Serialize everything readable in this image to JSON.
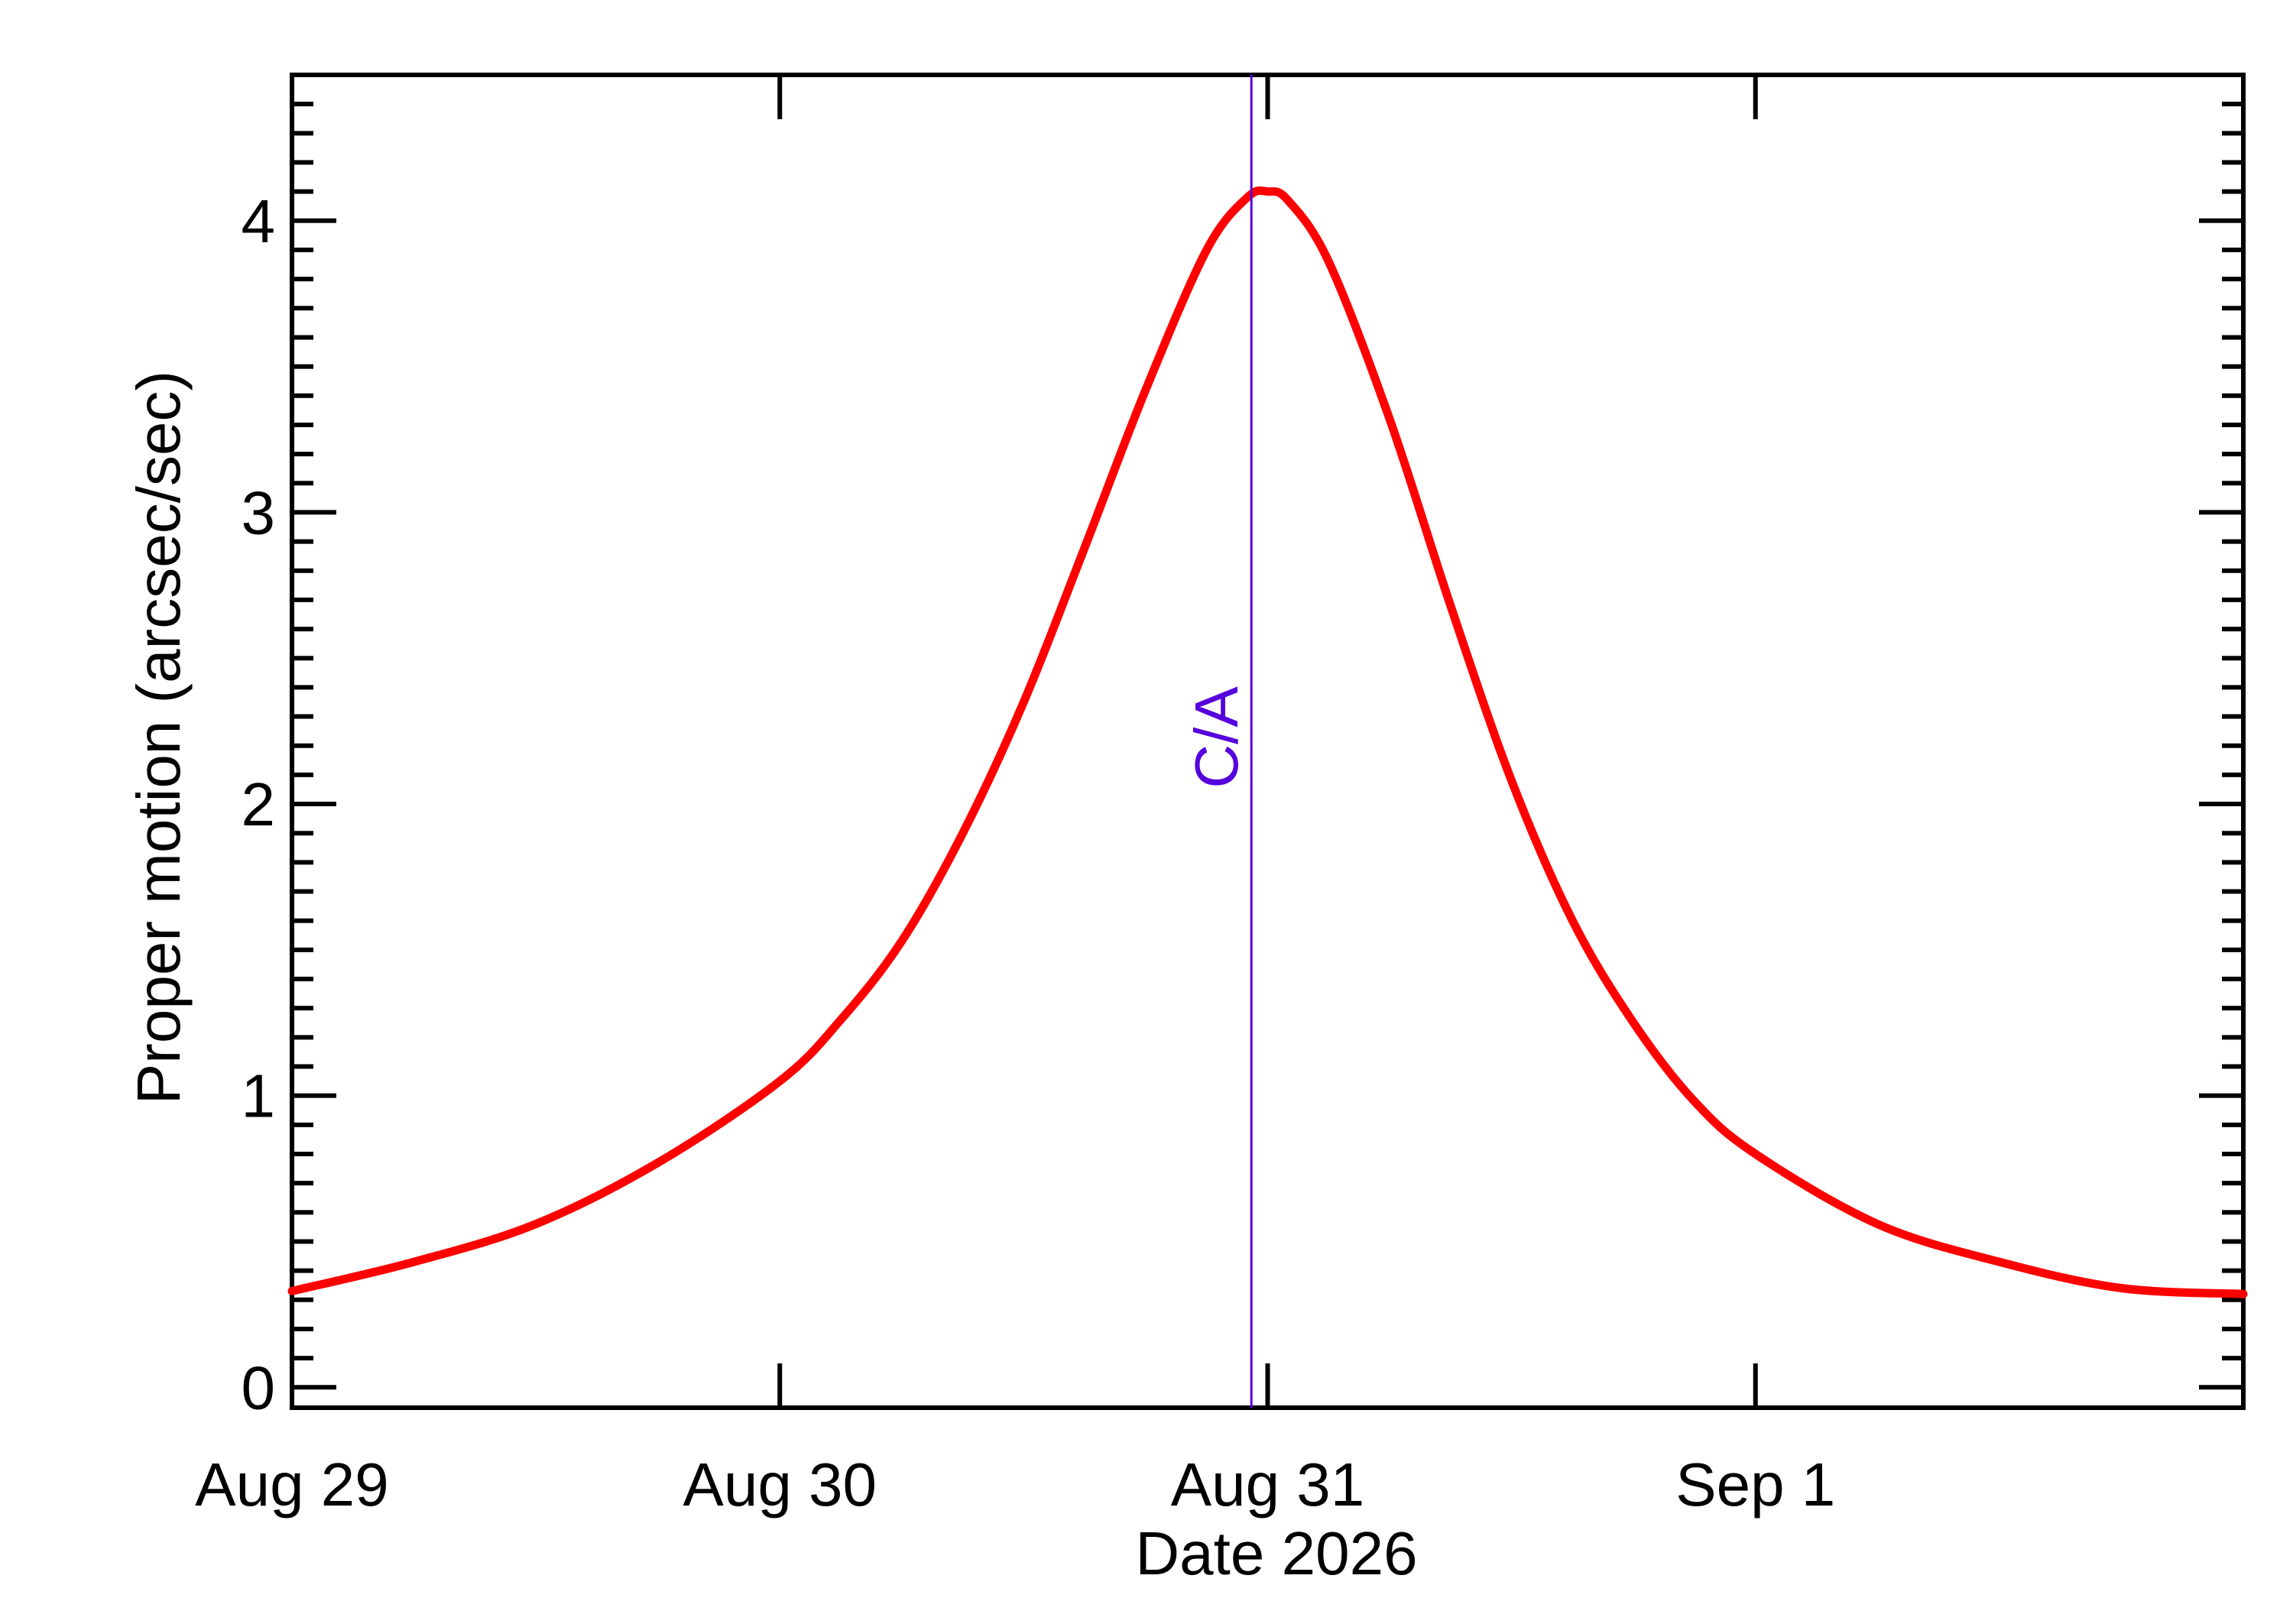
{
  "chart_data": {
    "type": "line",
    "title": "",
    "xlabel": "Date 2026",
    "ylabel": "Proper motion (arcsec/sec)",
    "x_tick_labels": [
      {
        "date": "2026-08-29",
        "label": "Aug 29"
      },
      {
        "date": "2026-08-30",
        "label": "Aug 30"
      },
      {
        "date": "2026-08-31",
        "label": "Aug 31"
      },
      {
        "date": "2026-09-01",
        "label": "Sep  1"
      }
    ],
    "y_ticks": [
      0,
      1,
      2,
      3,
      4
    ],
    "xlim": [
      "2026-08-29 00:00",
      "2026-09-02 00:00"
    ],
    "ylim": [
      -0.07,
      4.5
    ],
    "grid": false,
    "series": [
      {
        "color": "#ff0000",
        "x": [
          "2026-08-29 00:00",
          "2026-08-29 06:00",
          "2026-08-29 12:00",
          "2026-08-29 18:00",
          "2026-08-30 00:00",
          "2026-08-30 03:00",
          "2026-08-30 06:00",
          "2026-08-30 09:00",
          "2026-08-30 12:00",
          "2026-08-30 15:00",
          "2026-08-30 18:00",
          "2026-08-30 21:00",
          "2026-08-30 23:00",
          "2026-08-31 00:00",
          "2026-08-31 01:00",
          "2026-08-31 03:00",
          "2026-08-31 06:00",
          "2026-08-31 09:00",
          "2026-08-31 12:00",
          "2026-08-31 15:00",
          "2026-08-31 18:00",
          "2026-08-31 21:00",
          "2026-09-01 00:00",
          "2026-09-01 06:00",
          "2026-09-01 12:00",
          "2026-09-01 18:00",
          "2026-09-02 00:00"
        ],
        "y": [
          0.33,
          0.43,
          0.56,
          0.77,
          1.05,
          1.26,
          1.53,
          1.9,
          2.35,
          2.88,
          3.42,
          3.9,
          4.08,
          4.1,
          4.07,
          3.86,
          3.32,
          2.68,
          2.08,
          1.6,
          1.25,
          0.98,
          0.8,
          0.56,
          0.43,
          0.34,
          0.32
        ]
      }
    ],
    "annotations": [
      {
        "label": "C/A",
        "x": "2026-08-30 23:12",
        "color": "#5500dd"
      }
    ]
  }
}
